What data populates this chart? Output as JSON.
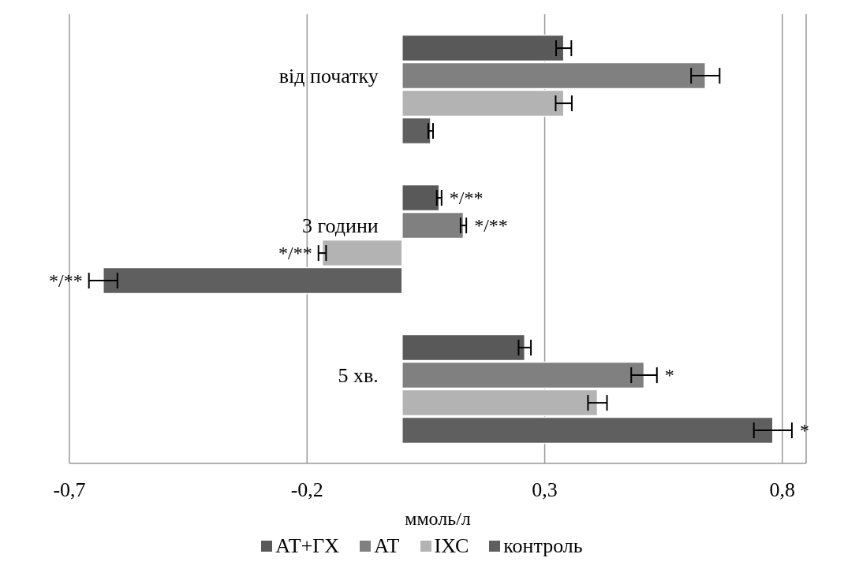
{
  "chart_data": {
    "type": "bar",
    "orientation": "horizontal",
    "xlabel": "ммоль/л",
    "categories": [
      "від початку",
      "3 години",
      "5 хв."
    ],
    "series": [
      {
        "name": "АТ+ГХ",
        "color": "#595959",
        "values": [
          0.34,
          0.078,
          0.258
        ],
        "errors": [
          0.016,
          0.005,
          0.013
        ],
        "value_labels": [
          null,
          "*/**",
          null
        ]
      },
      {
        "name": "АТ",
        "color": "#808080",
        "values": [
          0.638,
          0.129,
          0.509
        ],
        "errors": [
          0.03,
          0.006,
          0.027
        ],
        "value_labels": [
          null,
          "*/**",
          "*"
        ]
      },
      {
        "name": "ІХС",
        "color": "#b3b3b3",
        "values": [
          0.34,
          -0.168,
          0.411
        ],
        "errors": [
          0.017,
          0.008,
          0.02
        ],
        "value_labels": [
          null,
          "*/**",
          null
        ]
      },
      {
        "name": "контроль",
        "color": "#5f5f5f",
        "values": [
          0.06,
          -0.629,
          0.78
        ],
        "errors": [
          0.005,
          0.03,
          0.04
        ],
        "value_labels": [
          null,
          "*/**",
          "*"
        ]
      }
    ],
    "xlim": [
      -0.7,
      0.85
    ],
    "xticks": [
      {
        "value": -0.7,
        "label": "-0,7"
      },
      {
        "value": -0.2,
        "label": "-0,2"
      },
      {
        "value": 0.3,
        "label": "0,3"
      },
      {
        "value": 0.8,
        "label": "0,8"
      }
    ],
    "grid": "x",
    "legend": "bottom"
  }
}
